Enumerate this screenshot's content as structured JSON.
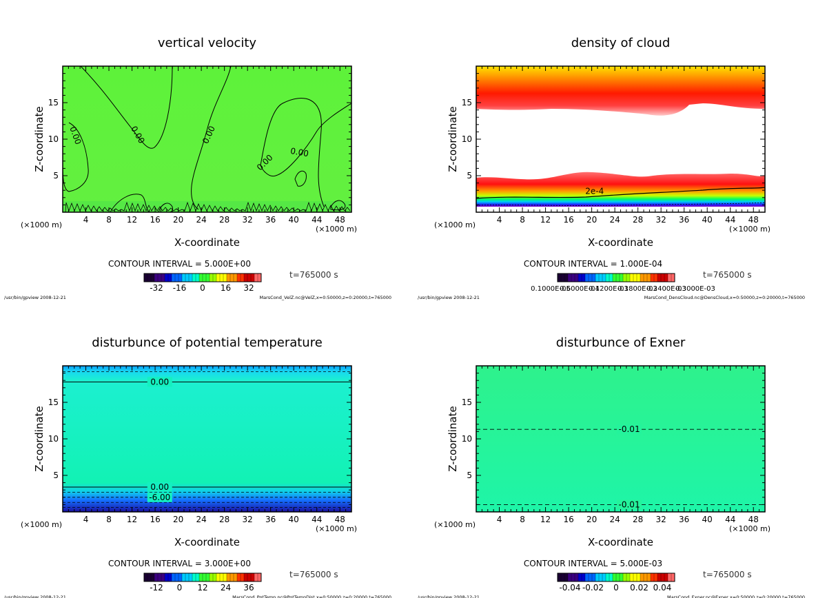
{
  "chart_data": [
    {
      "type": "heatmap",
      "title": "vertical velocity",
      "xlabel": "X-coordinate",
      "ylabel": "Z-coordinate",
      "x_unit": "(×1000 m)",
      "y_unit": "(×1000 m)",
      "xlim": [
        0,
        50
      ],
      "ylim": [
        0,
        20
      ],
      "xticks": [
        4,
        8,
        12,
        16,
        20,
        24,
        28,
        32,
        36,
        40,
        44,
        48
      ],
      "yticks": [
        5,
        10,
        15
      ],
      "contour_interval": "CONTOUR INTERVAL = 5.000E+00",
      "time": "t=765000 s",
      "colorbar_labels": [
        "-32",
        "-16",
        "0",
        "16",
        "32"
      ],
      "colorbar_colors": [
        "#1a0033",
        "#3b0080",
        "#0000cc",
        "#0066ff",
        "#00ccff",
        "#00ffcc",
        "#33ff33",
        "#99ff00",
        "#ffff00",
        "#ff9900",
        "#ff3300",
        "#cc0000",
        "#ff6666"
      ],
      "contour_labels": [
        {
          "text": "0.00",
          "x": 2.2,
          "y": 10.5,
          "rotate": 70
        },
        {
          "text": "0.00",
          "x": 13,
          "y": 10.6,
          "rotate": 60
        },
        {
          "text": "0.00",
          "x": 25.3,
          "y": 10.6,
          "rotate": -65
        },
        {
          "text": "0.00",
          "x": 35,
          "y": 6.8,
          "rotate": -45
        },
        {
          "text": "0.00",
          "x": 41,
          "y": 8.2,
          "rotate": 10
        }
      ],
      "fill": "green",
      "path_file": "/usr/bin/gpview  2008-12-21",
      "source": "MarsCond_VelZ.nc@VelZ,x=0:50000,z=0:20000,t=765000"
    },
    {
      "type": "heatmap",
      "title": "density of cloud",
      "xlabel": "X-coordinate",
      "ylabel": "Z-coordinate",
      "x_unit": "(×1000 m)",
      "y_unit": "(×1000 m)",
      "xlim": [
        0,
        50
      ],
      "ylim": [
        0,
        20
      ],
      "xticks": [
        4,
        8,
        12,
        16,
        20,
        24,
        28,
        32,
        36,
        40,
        44,
        48
      ],
      "yticks": [
        5,
        10,
        15
      ],
      "contour_interval": "CONTOUR INTERVAL = 1.000E-04",
      "time": "t=765000 s",
      "colorbar_labels": [
        "0.1000E-05",
        "0.6000E-04",
        "0.1200E-03",
        "0.1800E-03",
        "0.2400E-03",
        "0.3000E-03"
      ],
      "colorbar_colors": [
        "#1a0033",
        "#3b0080",
        "#0000cc",
        "#0066ff",
        "#00ccff",
        "#00ffcc",
        "#33ff33",
        "#99ff00",
        "#ffff00",
        "#ff9900",
        "#ff3300",
        "#cc0000",
        "#ff6666"
      ],
      "contour_labels": [
        {
          "text": "2e-4",
          "x": 20.5,
          "y": 2.9,
          "rotate": 0
        }
      ],
      "fill": "cloud-bands",
      "path_file": "/usr/bin/gpview  2008-12-21",
      "source": "MarsCond_DensCloud.nc@DensCloud,x=0:50000,z=0:20000,t=765000"
    },
    {
      "type": "heatmap",
      "title": "disturbunce of potential temperature",
      "xlabel": "X-coordinate",
      "ylabel": "Z-coordinate",
      "x_unit": "(×1000 m)",
      "y_unit": "(×1000 m)",
      "xlim": [
        0,
        50
      ],
      "ylim": [
        0,
        20
      ],
      "xticks": [
        4,
        8,
        12,
        16,
        20,
        24,
        28,
        32,
        36,
        40,
        44,
        48
      ],
      "yticks": [
        5,
        10,
        15
      ],
      "contour_interval": "CONTOUR INTERVAL = 3.000E+00",
      "time": "t=765000 s",
      "colorbar_labels": [
        "-12",
        "0",
        "12",
        "24",
        "36"
      ],
      "colorbar_colors": [
        "#1a0033",
        "#3b0080",
        "#0000cc",
        "#0066ff",
        "#00ccff",
        "#00ffcc",
        "#33ff33",
        "#99ff00",
        "#ffff00",
        "#ff9900",
        "#ff3300",
        "#cc0000",
        "#ff6666"
      ],
      "contour_labels": [
        {
          "text": "0.00",
          "x": 16.8,
          "y": 17.8,
          "rotate": 0
        },
        {
          "text": "0.00",
          "x": 16.8,
          "y": 3.4,
          "rotate": 0
        },
        {
          "text": "-6.00",
          "x": 16.8,
          "y": 2.0,
          "rotate": 0
        }
      ],
      "fill": "cyan",
      "path_file": "/usr/bin/gpview  2008-12-21",
      "source": "MarsCond_PotTemp.nc@PotTempDist,x=0:50000,z=0:20000,t=765000"
    },
    {
      "type": "heatmap",
      "title": "disturbunce of Exner",
      "xlabel": "X-coordinate",
      "ylabel": "Z-coordinate",
      "x_unit": "(×1000 m)",
      "y_unit": "(×1000 m)",
      "xlim": [
        0,
        50
      ],
      "ylim": [
        0,
        20
      ],
      "xticks": [
        4,
        8,
        12,
        16,
        20,
        24,
        28,
        32,
        36,
        40,
        44,
        48
      ],
      "yticks": [
        5,
        10,
        15
      ],
      "contour_interval": "CONTOUR INTERVAL = 5.000E-03",
      "time": "t=765000 s",
      "colorbar_labels": [
        "-0.04",
        "-0.02",
        "0",
        "0.02",
        "0.04"
      ],
      "colorbar_colors": [
        "#1a0033",
        "#3b0080",
        "#0000cc",
        "#0066ff",
        "#00ccff",
        "#00ffcc",
        "#33ff33",
        "#99ff00",
        "#ffff00",
        "#ff9900",
        "#ff3300",
        "#cc0000",
        "#ff6666"
      ],
      "contour_labels": [
        {
          "text": "-0.01",
          "x": 26.5,
          "y": 11.3,
          "rotate": 0
        },
        {
          "text": "-0.01",
          "x": 26.5,
          "y": 1.0,
          "rotate": 0
        }
      ],
      "fill": "mint",
      "path_file": "/usr/bin/gpview  2008-12-21",
      "source": "MarsCond_Exner.nc@Exner,x=0:50000,z=0:20000,t=765000"
    }
  ]
}
